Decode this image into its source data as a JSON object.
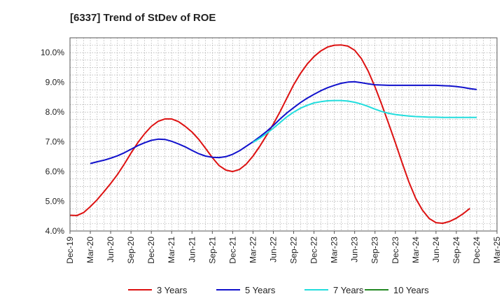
{
  "chart_data": {
    "type": "line",
    "title": "[6337]  Trend of StDev of ROE",
    "xlabel": "",
    "ylabel": "",
    "x_ticks": [
      "Dec-19",
      "Mar-20",
      "Jun-20",
      "Sep-20",
      "Dec-20",
      "Mar-21",
      "Jun-21",
      "Sep-21",
      "Dec-21",
      "Mar-22",
      "Jun-22",
      "Sep-22",
      "Dec-22",
      "Mar-23",
      "Jun-23",
      "Sep-23",
      "Dec-23",
      "Mar-24",
      "Jun-24",
      "Sep-24",
      "Dec-24",
      "Mar-25"
    ],
    "y_ticks": [
      "4.0%",
      "5.0%",
      "6.0%",
      "7.0%",
      "8.0%",
      "9.0%",
      "10.0%"
    ],
    "ylim": [
      4.0,
      10.5
    ],
    "grid": true,
    "legend_position": "bottom",
    "series": [
      {
        "name": "3 Years",
        "color": "#dd1111",
        "points": [
          [
            "Dec-19",
            4.53
          ],
          [
            "Jan-20",
            4.52
          ],
          [
            "Feb-20",
            4.62
          ],
          [
            "Mar-20",
            4.82
          ],
          [
            "Apr-20",
            5.05
          ],
          [
            "May-20",
            5.32
          ],
          [
            "Jun-20",
            5.6
          ],
          [
            "Jul-20",
            5.9
          ],
          [
            "Aug-20",
            6.25
          ],
          [
            "Sep-20",
            6.62
          ],
          [
            "Oct-20",
            6.97
          ],
          [
            "Nov-20",
            7.27
          ],
          [
            "Dec-20",
            7.52
          ],
          [
            "Jan-21",
            7.69
          ],
          [
            "Feb-21",
            7.77
          ],
          [
            "Mar-21",
            7.77
          ],
          [
            "Apr-21",
            7.68
          ],
          [
            "May-21",
            7.52
          ],
          [
            "Jun-21",
            7.33
          ],
          [
            "Jul-21",
            7.08
          ],
          [
            "Aug-21",
            6.78
          ],
          [
            "Sep-21",
            6.47
          ],
          [
            "Oct-21",
            6.2
          ],
          [
            "Nov-21",
            6.05
          ],
          [
            "Dec-21",
            6.0
          ],
          [
            "Jan-22",
            6.07
          ],
          [
            "Feb-22",
            6.25
          ],
          [
            "Mar-22",
            6.52
          ],
          [
            "Apr-22",
            6.85
          ],
          [
            "May-22",
            7.22
          ],
          [
            "Jun-22",
            7.6
          ],
          [
            "Jul-22",
            8.02
          ],
          [
            "Aug-22",
            8.47
          ],
          [
            "Sep-22",
            8.92
          ],
          [
            "Oct-22",
            9.3
          ],
          [
            "Nov-22",
            9.62
          ],
          [
            "Dec-22",
            9.87
          ],
          [
            "Jan-23",
            10.06
          ],
          [
            "Feb-23",
            10.19
          ],
          [
            "Mar-23",
            10.25
          ],
          [
            "Apr-23",
            10.26
          ],
          [
            "May-23",
            10.22
          ],
          [
            "Jun-23",
            10.08
          ],
          [
            "Jul-23",
            9.8
          ],
          [
            "Aug-23",
            9.38
          ],
          [
            "Sep-23",
            8.85
          ],
          [
            "Oct-23",
            8.25
          ],
          [
            "Nov-23",
            7.62
          ],
          [
            "Dec-23",
            6.97
          ],
          [
            "Jan-24",
            6.3
          ],
          [
            "Feb-24",
            5.65
          ],
          [
            "Mar-24",
            5.1
          ],
          [
            "Apr-24",
            4.7
          ],
          [
            "May-24",
            4.42
          ],
          [
            "Jun-24",
            4.28
          ],
          [
            "Jul-24",
            4.26
          ],
          [
            "Aug-24",
            4.32
          ],
          [
            "Sep-24",
            4.43
          ],
          [
            "Oct-24",
            4.58
          ],
          [
            "Nov-24",
            4.76
          ]
        ]
      },
      {
        "name": "5 Years",
        "color": "#1111cc",
        "points": [
          [
            "Mar-20",
            6.27
          ],
          [
            "Apr-20",
            6.33
          ],
          [
            "May-20",
            6.38
          ],
          [
            "Jun-20",
            6.45
          ],
          [
            "Jul-20",
            6.53
          ],
          [
            "Aug-20",
            6.63
          ],
          [
            "Sep-20",
            6.75
          ],
          [
            "Oct-20",
            6.87
          ],
          [
            "Nov-20",
            6.97
          ],
          [
            "Dec-20",
            7.05
          ],
          [
            "Jan-21",
            7.09
          ],
          [
            "Feb-21",
            7.08
          ],
          [
            "Mar-21",
            7.02
          ],
          [
            "Apr-21",
            6.93
          ],
          [
            "May-21",
            6.83
          ],
          [
            "Jun-21",
            6.71
          ],
          [
            "Jul-21",
            6.6
          ],
          [
            "Aug-21",
            6.52
          ],
          [
            "Sep-21",
            6.48
          ],
          [
            "Oct-21",
            6.47
          ],
          [
            "Nov-21",
            6.5
          ],
          [
            "Dec-21",
            6.58
          ],
          [
            "Jan-22",
            6.7
          ],
          [
            "Feb-22",
            6.85
          ],
          [
            "Mar-22",
            7.0
          ],
          [
            "Apr-22",
            7.17
          ],
          [
            "May-22",
            7.35
          ],
          [
            "Jun-22",
            7.55
          ],
          [
            "Jul-22",
            7.77
          ],
          [
            "Aug-22",
            7.97
          ],
          [
            "Sep-22",
            8.15
          ],
          [
            "Oct-22",
            8.32
          ],
          [
            "Nov-22",
            8.47
          ],
          [
            "Dec-22",
            8.6
          ],
          [
            "Jan-23",
            8.72
          ],
          [
            "Feb-23",
            8.82
          ],
          [
            "Mar-23",
            8.9
          ],
          [
            "Apr-23",
            8.97
          ],
          [
            "May-23",
            9.01
          ],
          [
            "Jun-23",
            9.02
          ],
          [
            "Jul-23",
            8.99
          ],
          [
            "Aug-23",
            8.95
          ],
          [
            "Sep-23",
            8.92
          ],
          [
            "Oct-23",
            8.91
          ],
          [
            "Nov-23",
            8.9
          ],
          [
            "Dec-23",
            8.9
          ],
          [
            "Jan-24",
            8.9
          ],
          [
            "Feb-24",
            8.9
          ],
          [
            "Mar-24",
            8.9
          ],
          [
            "Apr-24",
            8.9
          ],
          [
            "May-24",
            8.9
          ],
          [
            "Jun-24",
            8.9
          ],
          [
            "Jul-24",
            8.89
          ],
          [
            "Aug-24",
            8.88
          ],
          [
            "Sep-24",
            8.86
          ],
          [
            "Oct-24",
            8.83
          ],
          [
            "Nov-24",
            8.79
          ],
          [
            "Dec-24",
            8.76
          ]
        ]
      },
      {
        "name": "7 Years",
        "color": "#22dddd",
        "points": [
          [
            "Mar-22",
            6.98
          ],
          [
            "Apr-22",
            7.12
          ],
          [
            "May-22",
            7.28
          ],
          [
            "Jun-22",
            7.46
          ],
          [
            "Jul-22",
            7.65
          ],
          [
            "Aug-22",
            7.84
          ],
          [
            "Sep-22",
            8.0
          ],
          [
            "Oct-22",
            8.13
          ],
          [
            "Nov-22",
            8.23
          ],
          [
            "Dec-22",
            8.31
          ],
          [
            "Jan-23",
            8.35
          ],
          [
            "Feb-23",
            8.38
          ],
          [
            "Mar-23",
            8.39
          ],
          [
            "Apr-23",
            8.39
          ],
          [
            "May-23",
            8.37
          ],
          [
            "Jun-23",
            8.33
          ],
          [
            "Jul-23",
            8.27
          ],
          [
            "Aug-23",
            8.19
          ],
          [
            "Sep-23",
            8.1
          ],
          [
            "Oct-23",
            8.02
          ],
          [
            "Nov-23",
            7.96
          ],
          [
            "Dec-23",
            7.92
          ],
          [
            "Jan-24",
            7.89
          ],
          [
            "Feb-24",
            7.87
          ],
          [
            "Mar-24",
            7.85
          ],
          [
            "Apr-24",
            7.84
          ],
          [
            "May-24",
            7.83
          ],
          [
            "Jun-24",
            7.83
          ],
          [
            "Jul-24",
            7.82
          ],
          [
            "Aug-24",
            7.82
          ],
          [
            "Sep-24",
            7.82
          ],
          [
            "Oct-24",
            7.82
          ],
          [
            "Nov-24",
            7.82
          ],
          [
            "Dec-24",
            7.82
          ]
        ]
      },
      {
        "name": "10 Years",
        "color": "#228822",
        "points": []
      }
    ]
  }
}
